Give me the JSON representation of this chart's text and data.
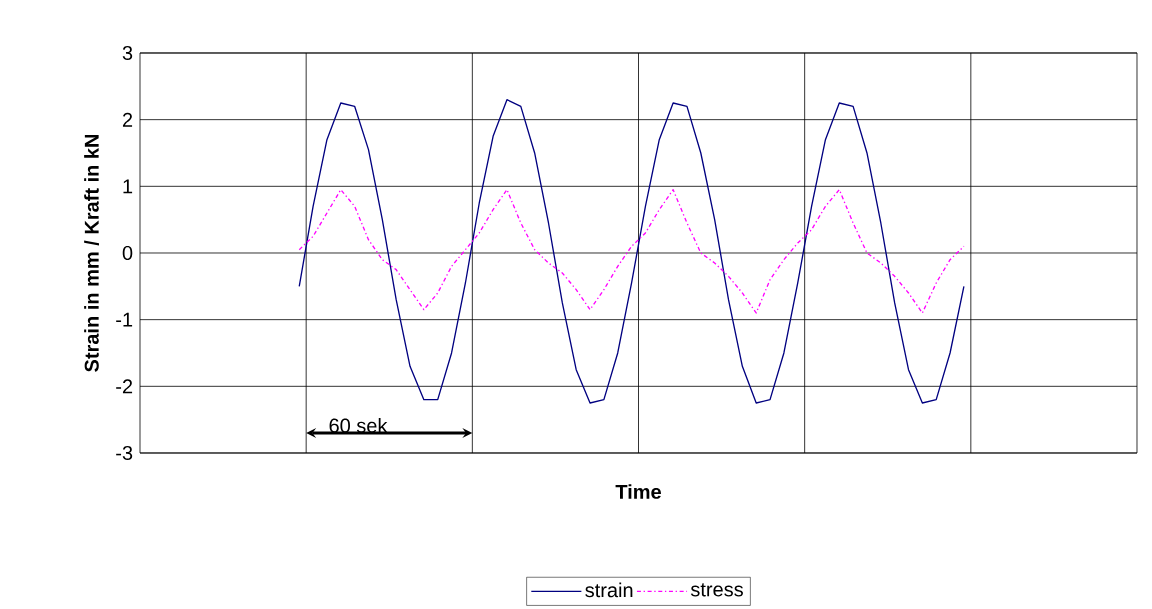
{
  "chart_data": {
    "type": "line",
    "xlabel": "Time",
    "ylabel": "Strain in mm / Kraft in kN",
    "categories": [
      null,
      null,
      null,
      null,
      null,
      null,
      null,
      null,
      null,
      null,
      null,
      null,
      null,
      null,
      null,
      null,
      null,
      null,
      null,
      null,
      null,
      null,
      null,
      null,
      null,
      null,
      null,
      null,
      null,
      null,
      null,
      null,
      null,
      null,
      null,
      null,
      null,
      null,
      null,
      null,
      null,
      null,
      null,
      null,
      null,
      null,
      null,
      null,
      null,
      null,
      null,
      null,
      null,
      null,
      null,
      null,
      null,
      null,
      null,
      null,
      null,
      null,
      null,
      null,
      null,
      null,
      null,
      null,
      null,
      null,
      null,
      null
    ],
    "series": [
      {
        "name": "strain",
        "color": "#000080",
        "line_style": "solid",
        "values": [
          null,
          null,
          null,
          null,
          null,
          null,
          null,
          null,
          null,
          null,
          null,
          -0.5,
          0.7,
          1.7,
          2.25,
          2.2,
          1.55,
          0.5,
          -0.7,
          -1.7,
          -2.2,
          -2.2,
          -1.5,
          -0.45,
          0.75,
          1.75,
          2.3,
          2.2,
          1.5,
          0.45,
          -0.75,
          -1.75,
          -2.25,
          -2.2,
          -1.5,
          -0.45,
          0.7,
          1.7,
          2.25,
          2.2,
          1.5,
          0.5,
          -0.7,
          -1.7,
          -2.25,
          -2.2,
          -1.5,
          -0.45,
          0.7,
          1.7,
          2.25,
          2.2,
          1.5,
          0.45,
          -0.75,
          -1.75,
          -2.25,
          -2.2,
          -1.5,
          -0.5,
          null,
          null,
          null,
          null,
          null,
          null,
          null,
          null,
          null,
          null,
          null,
          null
        ]
      },
      {
        "name": "stress",
        "color": "#ff00ff",
        "line_style": "dashdot",
        "values": [
          null,
          null,
          null,
          null,
          null,
          null,
          null,
          null,
          null,
          null,
          null,
          0.05,
          0.25,
          0.6,
          0.95,
          0.7,
          0.2,
          -0.1,
          -0.25,
          -0.55,
          -0.85,
          -0.6,
          -0.2,
          0.05,
          0.3,
          0.65,
          0.95,
          0.45,
          0.05,
          -0.15,
          -0.3,
          -0.55,
          -0.85,
          -0.55,
          -0.2,
          0.1,
          0.3,
          0.65,
          0.95,
          0.45,
          0.0,
          -0.15,
          -0.35,
          -0.6,
          -0.9,
          -0.4,
          -0.1,
          0.15,
          0.35,
          0.7,
          0.95,
          0.45,
          0.0,
          -0.15,
          -0.35,
          -0.6,
          -0.9,
          -0.45,
          -0.1,
          0.1,
          null,
          null,
          null,
          null,
          null,
          null,
          null,
          null,
          null,
          null,
          null,
          null
        ]
      }
    ],
    "ylim": [
      -3,
      3
    ],
    "yticks": [
      -3,
      -2,
      -1,
      0,
      1,
      2,
      3
    ],
    "grid": true,
    "legend": "bottom",
    "tick_labels": "y",
    "marker": "none",
    "annotations": [
      "60 sek"
    ]
  }
}
